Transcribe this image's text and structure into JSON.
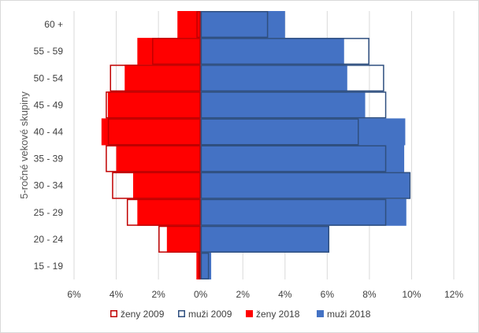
{
  "chart_data": {
    "type": "bar",
    "orientation": "horizontal",
    "ylabel": "5-ročné vekové skupiny",
    "categories": [
      "15 - 19",
      "20 - 24",
      "25 - 29",
      "30 - 34",
      "35 - 39",
      "40 - 44",
      "45 - 49",
      "50 - 54",
      "55 - 59",
      "60 +"
    ],
    "x_tick_labels": [
      "6%",
      "4%",
      "2%",
      "0%",
      "2%",
      "4%",
      "6%",
      "8%",
      "10%",
      "12%"
    ],
    "xlim": [
      -6,
      12
    ],
    "grid": true,
    "legend_position": "bottom",
    "series": [
      {
        "name": "ženy 2009",
        "style": "outline",
        "color": "#c00000",
        "values": [
          -0.1,
          -2.0,
          -3.5,
          -4.2,
          -4.5,
          -4.4,
          -4.5,
          -4.3,
          -2.3,
          -0.2
        ]
      },
      {
        "name": "muži 2009",
        "style": "outline",
        "color": "#2f4f7f",
        "values": [
          0.4,
          6.1,
          8.8,
          9.95,
          8.8,
          7.5,
          8.8,
          8.7,
          8.0,
          3.2
        ]
      },
      {
        "name": "ženy 2018",
        "style": "filled",
        "color": "#ff0000",
        "values": [
          -0.2,
          -1.6,
          -3.0,
          -3.2,
          -4.0,
          -4.7,
          -4.4,
          -3.6,
          -3.0,
          -1.1
        ]
      },
      {
        "name": "muži 2018",
        "style": "filled",
        "color": "#4472c4",
        "values": [
          0.5,
          6.1,
          9.75,
          9.9,
          9.65,
          9.7,
          7.8,
          6.95,
          6.8,
          4.0
        ]
      }
    ]
  }
}
